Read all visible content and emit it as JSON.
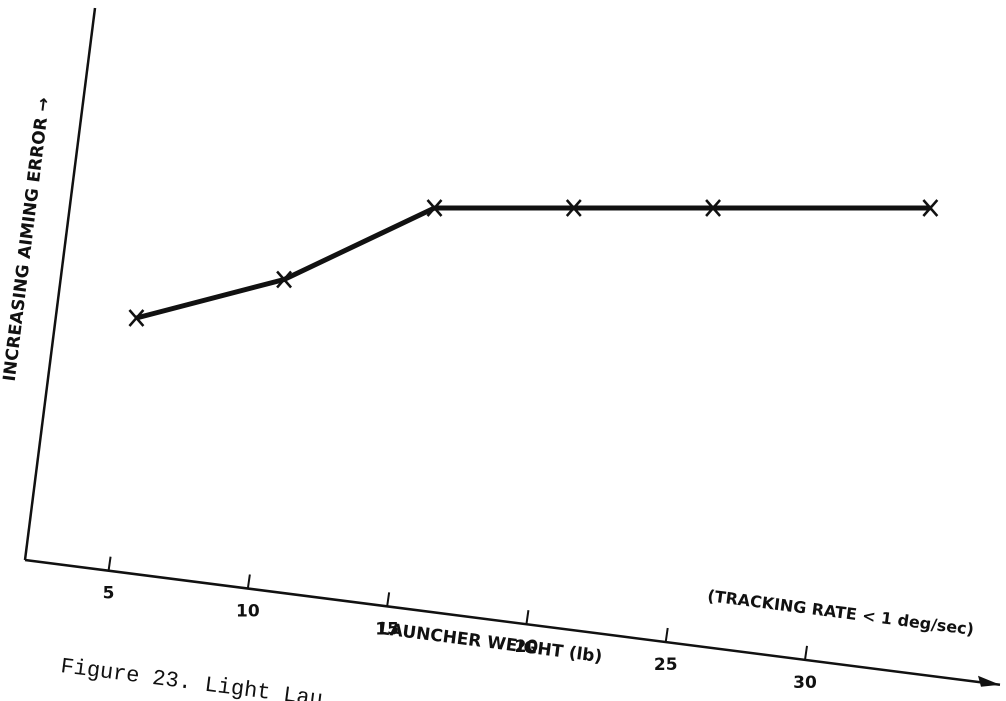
{
  "chart_data": {
    "type": "line",
    "y_label": "INCREASING AIMING ERROR →",
    "x_label": "LAUNCHER WEIGHT (lb)",
    "annotation": "(TRACKING RATE < 1 deg/sec)",
    "caption": "Figure 23.  Light Lau",
    "x": [
      6,
      11.3,
      16.7,
      21.7,
      26.7,
      34.5
    ],
    "series": [
      {
        "color": "#111111",
        "values": [
          44,
          51,
          64,
          64,
          64,
          64
        ]
      }
    ],
    "xlim": [
      2,
      37
    ],
    "xticks": [
      5,
      10,
      15,
      20,
      25,
      30
    ],
    "ylim": [
      0,
      100
    ]
  }
}
